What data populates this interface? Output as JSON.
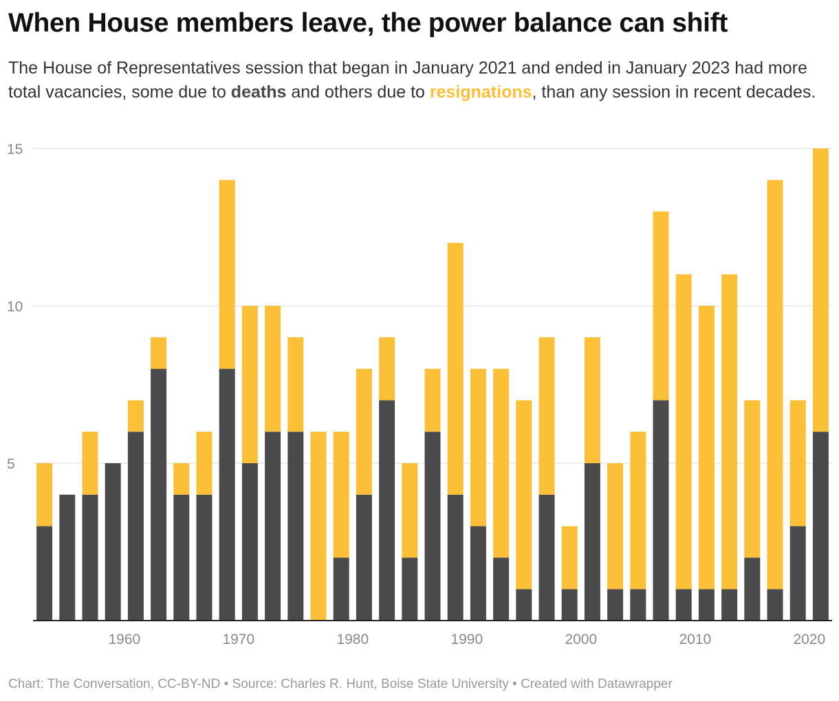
{
  "header": {
    "title": "When House members leave, the power balance can shift",
    "subtitle_part1": "The House of Representatives session that began in January 2021 and ended in January 2023 had more total vacancies, some due to ",
    "subtitle_deaths": "deaths",
    "subtitle_part2": " and others due to ",
    "subtitle_resignations": "resignations",
    "subtitle_part3": ", than any session in recent decades."
  },
  "footer": {
    "text": "Chart: The Conversation, CC-BY-ND • Source: Charles R. Hunt, Boise State University • Created with Datawrapper"
  },
  "colors": {
    "deaths": "#4a4a4c",
    "resignations": "#fbc037",
    "grid": "#dddddd",
    "axis": "#222222",
    "tick_text": "#888888"
  },
  "chart_data": {
    "type": "bar",
    "stacked": true,
    "title": "When House members leave, the power balance can shift",
    "categories": [
      1953,
      1955,
      1957,
      1959,
      1961,
      1963,
      1965,
      1967,
      1969,
      1971,
      1973,
      1975,
      1977,
      1979,
      1981,
      1983,
      1985,
      1987,
      1989,
      1991,
      1993,
      1995,
      1997,
      1999,
      2001,
      2003,
      2005,
      2007,
      2009,
      2011,
      2013,
      2015,
      2017,
      2019,
      2021
    ],
    "series": [
      {
        "name": "deaths",
        "values": [
          3,
          4,
          4,
          5,
          6,
          8,
          4,
          4,
          8,
          5,
          6,
          6,
          0,
          2,
          4,
          7,
          2,
          6,
          4,
          3,
          2,
          1,
          4,
          1,
          5,
          1,
          1,
          7,
          1,
          1,
          1,
          2,
          1,
          3,
          6
        ]
      },
      {
        "name": "resignations",
        "values": [
          2,
          0,
          2,
          0,
          1,
          1,
          1,
          2,
          6,
          5,
          4,
          3,
          6,
          4,
          4,
          2,
          3,
          2,
          8,
          5,
          6,
          6,
          5,
          2,
          4,
          4,
          5,
          6,
          10,
          9,
          10,
          5,
          13,
          4,
          9
        ]
      }
    ],
    "x_tick_labels": [
      "1960",
      "1970",
      "1980",
      "1990",
      "2000",
      "2010",
      "2020"
    ],
    "y_ticks": [
      "5",
      "10",
      "15"
    ],
    "ylim": [
      0,
      15
    ],
    "grid": true,
    "legend": "in subtitle text"
  }
}
